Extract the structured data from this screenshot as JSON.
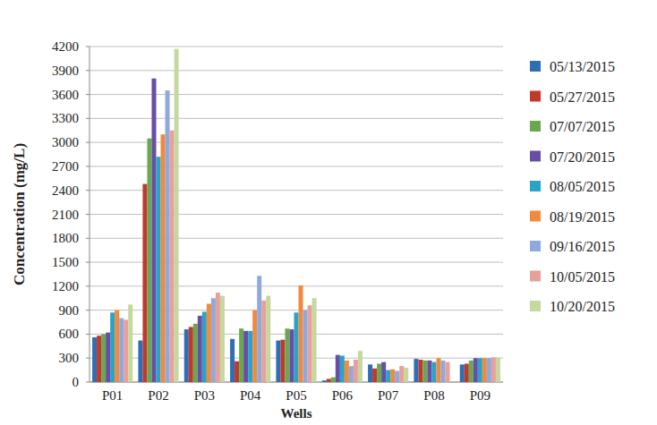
{
  "chart_data": {
    "type": "bar",
    "x_label": "Wells",
    "y_label": "Concentration (mg/L)",
    "categories": [
      "P01",
      "P02",
      "P03",
      "P04",
      "P05",
      "P06",
      "P07",
      "P08",
      "P09"
    ],
    "series": [
      {
        "name": "05/13/2015",
        "color": "#2f6db5",
        "values": [
          560,
          520,
          660,
          540,
          520,
          20,
          220,
          290,
          220
        ]
      },
      {
        "name": "05/27/2015",
        "color": "#c0392b",
        "values": [
          580,
          2480,
          690,
          260,
          530,
          40,
          170,
          280,
          230
        ]
      },
      {
        "name": "07/07/2015",
        "color": "#6aa84f",
        "values": [
          600,
          3050,
          730,
          670,
          670,
          60,
          230,
          270,
          270
        ]
      },
      {
        "name": "07/20/2015",
        "color": "#674ea7",
        "values": [
          620,
          3800,
          830,
          640,
          660,
          340,
          250,
          270,
          300
        ]
      },
      {
        "name": "08/05/2015",
        "color": "#2aa3c4",
        "values": [
          870,
          2820,
          880,
          640,
          870,
          330,
          150,
          250,
          300
        ]
      },
      {
        "name": "08/19/2015",
        "color": "#f08a3c",
        "values": [
          900,
          3100,
          980,
          900,
          1210,
          270,
          160,
          300,
          300
        ]
      },
      {
        "name": "09/16/2015",
        "color": "#8fa9dc",
        "values": [
          800,
          3650,
          1050,
          1330,
          900,
          200,
          140,
          270,
          300
        ]
      },
      {
        "name": "10/05/2015",
        "color": "#e8a09a",
        "values": [
          780,
          3150,
          1120,
          1020,
          960,
          280,
          200,
          250,
          310
        ]
      },
      {
        "name": "10/20/2015",
        "color": "#c5d89e",
        "values": [
          970,
          4170,
          1080,
          1080,
          1050,
          390,
          180,
          null,
          310
        ]
      }
    ],
    "ylim": [
      0,
      4200
    ],
    "yticks": [
      0,
      300,
      600,
      900,
      1200,
      1500,
      1800,
      2100,
      2400,
      2700,
      3000,
      3300,
      3600,
      3900,
      4200
    ],
    "grid": true,
    "legend": "right"
  }
}
